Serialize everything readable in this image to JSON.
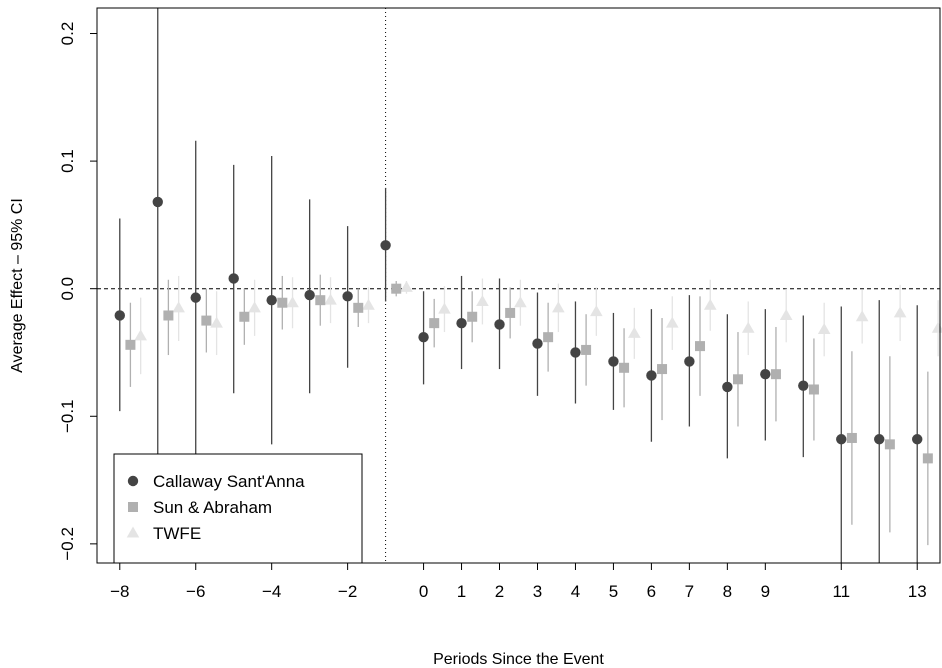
{
  "chart_data": {
    "type": "scatter",
    "title": "",
    "xlabel": "Periods Since the Event",
    "ylabel": "Average Effect – 95% CI",
    "xlim": [
      -8.6,
      13.6
    ],
    "ylim": [
      -0.215,
      0.22
    ],
    "x_tick_labels": [
      "-8",
      "-6",
      "-4",
      "-2",
      "0",
      "1",
      "2",
      "3",
      "4",
      "5",
      "6",
      "7",
      "8",
      "9",
      "11",
      "13"
    ],
    "y_tick_labels": [
      "-0.2",
      "-0.1",
      "0.0",
      "0.1",
      "0.2"
    ],
    "reference_lines": {
      "horizontal_dashed_y": 0,
      "vertical_dotted_x": -1
    },
    "legend_position": "bottom-left",
    "grid": false,
    "series": [
      {
        "name": "Callaway Sant'Anna",
        "marker": "circle",
        "color": "#444444",
        "offset": 0,
        "x": [
          -8,
          -7,
          -6,
          -5,
          -4,
          -3,
          -2,
          -1,
          0,
          1,
          2,
          3,
          4,
          5,
          6,
          7,
          8,
          9,
          10,
          11,
          12,
          13
        ],
        "y": [
          -0.021,
          0.068,
          -0.007,
          0.008,
          -0.009,
          -0.005,
          -0.006,
          0.034,
          -0.038,
          -0.027,
          -0.028,
          -0.043,
          -0.05,
          -0.057,
          -0.068,
          -0.057,
          -0.077,
          -0.067,
          -0.076,
          -0.118,
          -0.118,
          -0.118
        ],
        "lower": [
          -0.096,
          -0.215,
          -0.13,
          -0.082,
          -0.122,
          -0.082,
          -0.062,
          -0.01,
          -0.075,
          -0.063,
          -0.063,
          -0.084,
          -0.09,
          -0.095,
          -0.12,
          -0.108,
          -0.133,
          -0.119,
          -0.132,
          -0.215,
          -0.215,
          -0.215
        ],
        "upper": [
          0.055,
          0.22,
          0.116,
          0.097,
          0.104,
          0.07,
          0.049,
          0.079,
          -0.002,
          0.01,
          0.008,
          -0.003,
          -0.01,
          -0.019,
          -0.016,
          -0.005,
          -0.02,
          -0.016,
          -0.021,
          -0.014,
          -0.009,
          -0.013
        ]
      },
      {
        "name": "Sun & Abraham",
        "marker": "square",
        "color": "#b0b0b0",
        "offset": 0.28,
        "x": [
          -8,
          -7,
          -6,
          -5,
          -4,
          -3,
          -2,
          -1,
          0,
          1,
          2,
          3,
          4,
          5,
          6,
          7,
          8,
          9,
          10,
          11,
          12,
          13
        ],
        "y": [
          -0.044,
          -0.021,
          -0.025,
          -0.022,
          -0.011,
          -0.009,
          -0.015,
          0.0,
          -0.027,
          -0.022,
          -0.019,
          -0.038,
          -0.048,
          -0.062,
          -0.063,
          -0.045,
          -0.071,
          -0.067,
          -0.079,
          -0.117,
          -0.122,
          -0.133
        ],
        "lower": [
          -0.077,
          -0.052,
          -0.05,
          -0.044,
          -0.032,
          -0.029,
          -0.03,
          -0.006,
          -0.046,
          -0.042,
          -0.039,
          -0.065,
          -0.076,
          -0.093,
          -0.103,
          -0.084,
          -0.108,
          -0.104,
          -0.119,
          -0.185,
          -0.191,
          -0.201
        ],
        "upper": [
          -0.011,
          0.007,
          0.0,
          0.0,
          0.01,
          0.011,
          0.0,
          0.006,
          -0.008,
          -0.002,
          0.001,
          -0.011,
          -0.02,
          -0.031,
          -0.023,
          -0.006,
          -0.034,
          -0.03,
          -0.039,
          -0.049,
          -0.053,
          -0.065
        ]
      },
      {
        "name": "TWFE",
        "marker": "triangle",
        "color": "#e4e4e4",
        "offset": 0.55,
        "x": [
          -8,
          -7,
          -6,
          -5,
          -4,
          -3,
          -2,
          -1,
          0,
          1,
          2,
          3,
          4,
          5,
          6,
          7,
          8,
          9,
          10,
          11,
          12,
          13
        ],
        "y": [
          -0.037,
          -0.015,
          -0.027,
          -0.015,
          -0.011,
          -0.009,
          -0.013,
          0.001,
          -0.016,
          -0.01,
          -0.011,
          -0.015,
          -0.018,
          -0.035,
          -0.027,
          -0.013,
          -0.031,
          -0.021,
          -0.032,
          -0.022,
          -0.019,
          -0.031
        ],
        "lower": [
          -0.067,
          -0.041,
          -0.052,
          -0.037,
          -0.031,
          -0.027,
          -0.027,
          -0.004,
          -0.034,
          -0.028,
          -0.029,
          -0.034,
          -0.037,
          -0.055,
          -0.048,
          -0.033,
          -0.052,
          -0.042,
          -0.053,
          -0.043,
          -0.041,
          -0.053
        ],
        "upper": [
          -0.007,
          0.01,
          -0.002,
          0.007,
          0.009,
          0.009,
          0.001,
          0.006,
          0.002,
          0.008,
          0.007,
          0.004,
          0.001,
          -0.015,
          -0.006,
          0.007,
          -0.01,
          0.0,
          -0.011,
          -0.001,
          0.003,
          -0.009
        ]
      }
    ]
  }
}
